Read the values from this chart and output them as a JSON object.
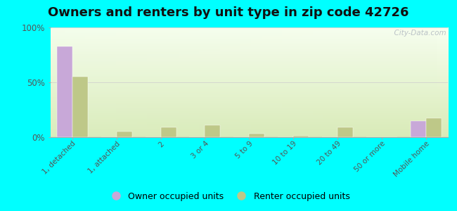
{
  "title": "Owners and renters by unit type in zip code 42726",
  "categories": [
    "1, detached",
    "1, attached",
    "2",
    "3 or 4",
    "5 to 9",
    "10 to 19",
    "20 to 49",
    "50 or more",
    "Mobile home"
  ],
  "owner_values": [
    83,
    0,
    0,
    0,
    0,
    0,
    0,
    0,
    15
  ],
  "renter_values": [
    55,
    5,
    9,
    11,
    3,
    1,
    9,
    0,
    17
  ],
  "owner_color": "#c8a8d8",
  "renter_color": "#bec888",
  "bar_width": 0.35,
  "ylim": [
    0,
    100
  ],
  "yticks": [
    0,
    50,
    100
  ],
  "ytick_labels": [
    "0%",
    "50%",
    "100%"
  ],
  "owner_label": "Owner occupied units",
  "renter_label": "Renter occupied units",
  "title_fontsize": 13,
  "outer_background": "#00ffff",
  "watermark": "  City-Data.com"
}
